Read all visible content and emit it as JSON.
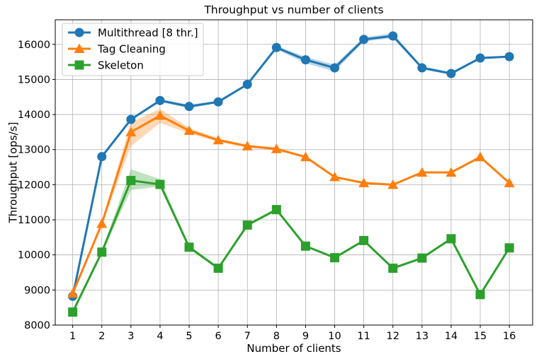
{
  "chart_data": {
    "type": "line",
    "title": "Throughput vs number of clients",
    "xlabel": "Number of clients",
    "ylabel": "Throughput [ops/s]",
    "x": [
      1,
      2,
      3,
      4,
      5,
      6,
      7,
      8,
      9,
      10,
      11,
      12,
      13,
      14,
      15,
      16
    ],
    "xlim": [
      0.4,
      16.8
    ],
    "ylim": [
      8000,
      16700
    ],
    "yticks": [
      8000,
      9000,
      10000,
      11000,
      12000,
      13000,
      14000,
      15000,
      16000
    ],
    "grid": true,
    "legend_position": "top-left",
    "series": [
      {
        "name": "Multithread [8 thr.]",
        "color": "#1f77b4",
        "marker": "circle",
        "values": [
          8820,
          12800,
          13860,
          14400,
          14230,
          14360,
          14860,
          15910,
          15560,
          15330,
          16140,
          16240,
          15330,
          15170,
          15610,
          15650
        ],
        "band": [
          [
            8800,
            8840
          ],
          [
            12750,
            12850
          ],
          [
            13830,
            13900
          ],
          [
            14360,
            14440
          ],
          [
            14180,
            14280
          ],
          [
            14330,
            14400
          ],
          [
            14830,
            14890
          ],
          [
            15860,
            15960
          ],
          [
            15460,
            15640
          ],
          [
            15230,
            15420
          ],
          [
            16080,
            16200
          ],
          [
            16180,
            16320
          ],
          [
            15290,
            15370
          ],
          [
            15130,
            15210
          ],
          [
            15580,
            15640
          ],
          [
            15620,
            15680
          ]
        ]
      },
      {
        "name": "Tag Cleaning",
        "color": "#ff7f0e",
        "marker": "triangle",
        "values": [
          8900,
          10890,
          13500,
          13970,
          13540,
          13270,
          13100,
          13020,
          12790,
          12220,
          12050,
          12000,
          12350,
          12350,
          12790,
          12050
        ],
        "band": [
          [
            8880,
            8920
          ],
          [
            10840,
            10940
          ],
          [
            13100,
            13780
          ],
          [
            13760,
            14160
          ],
          [
            13460,
            13620
          ],
          [
            13220,
            13320
          ],
          [
            13060,
            13140
          ],
          [
            12980,
            13060
          ],
          [
            12760,
            12820
          ],
          [
            12190,
            12250
          ],
          [
            12020,
            12080
          ],
          [
            11970,
            12030
          ],
          [
            12320,
            12380
          ],
          [
            12320,
            12380
          ],
          [
            12760,
            12820
          ],
          [
            12020,
            12080
          ]
        ]
      },
      {
        "name": "Skeleton",
        "color": "#2ca02c",
        "marker": "square",
        "values": [
          8370,
          10080,
          12120,
          12010,
          10220,
          9620,
          10850,
          11290,
          10250,
          9920,
          10410,
          9620,
          9910,
          10460,
          8870,
          10200
        ],
        "band": [
          [
            8350,
            8390
          ],
          [
            10030,
            10130
          ],
          [
            11850,
            12440
          ],
          [
            11950,
            12160
          ],
          [
            10170,
            10270
          ],
          [
            9580,
            9660
          ],
          [
            10810,
            10890
          ],
          [
            11250,
            11330
          ],
          [
            10220,
            10280
          ],
          [
            9890,
            9950
          ],
          [
            10380,
            10440
          ],
          [
            9590,
            9650
          ],
          [
            9880,
            9940
          ],
          [
            10430,
            10490
          ],
          [
            8840,
            8900
          ],
          [
            10170,
            10230
          ]
        ]
      }
    ]
  }
}
